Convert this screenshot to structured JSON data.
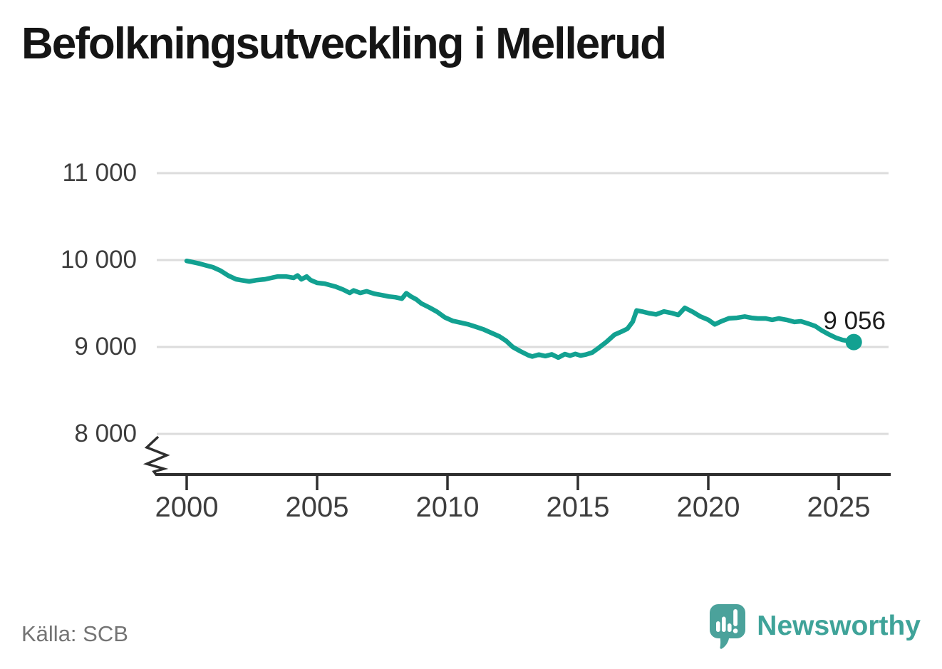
{
  "title": "Befolkningsutveckling i Mellerud",
  "source": "Källa: SCB",
  "branding": {
    "wordmark": "Newsworthy"
  },
  "colors": {
    "accent": "#12a191",
    "grid": "#dcdcdc",
    "axis": "#2f2f2f",
    "tick_text": "#3d3d3d",
    "title_text": "#151515",
    "source_text": "#747474",
    "logo_teal": "#4ba29b",
    "wordmark_teal": "#3fa399"
  },
  "chart_data": {
    "type": "line",
    "title": "Befolkningsutveckling i Mellerud",
    "legend": "none",
    "grid": "horizontal",
    "y_axis_break": true,
    "x_range": [
      1998.8,
      2027.0
    ],
    "y_range_shown": [
      8000,
      11000
    ],
    "y_ticks": [
      {
        "value": 11000,
        "label": "11 000"
      },
      {
        "value": 10000,
        "label": "10 000"
      },
      {
        "value": 9000,
        "label": "9 000"
      },
      {
        "value": 8000,
        "label": "8 000"
      }
    ],
    "x_ticks": [
      {
        "value": 2000,
        "label": "2000"
      },
      {
        "value": 2005,
        "label": "2005"
      },
      {
        "value": 2010,
        "label": "2010"
      },
      {
        "value": 2015,
        "label": "2015"
      },
      {
        "value": 2020,
        "label": "2020"
      },
      {
        "value": 2025,
        "label": "2025"
      }
    ],
    "end_point": {
      "x": 2025.58,
      "value": 9056,
      "label": "9 056"
    },
    "points": [
      [
        2000.0,
        9990
      ],
      [
        2000.25,
        9975
      ],
      [
        2000.5,
        9958
      ],
      [
        2000.75,
        9938
      ],
      [
        2001.0,
        9918
      ],
      [
        2001.3,
        9877
      ],
      [
        2001.6,
        9820
      ],
      [
        2001.9,
        9779
      ],
      [
        2002.1,
        9768
      ],
      [
        2002.4,
        9754
      ],
      [
        2002.7,
        9770
      ],
      [
        2003.0,
        9779
      ],
      [
        2003.25,
        9795
      ],
      [
        2003.5,
        9811
      ],
      [
        2003.8,
        9811
      ],
      [
        2004.1,
        9795
      ],
      [
        2004.25,
        9822
      ],
      [
        2004.4,
        9779
      ],
      [
        2004.6,
        9811
      ],
      [
        2004.75,
        9770
      ],
      [
        2005.0,
        9738
      ],
      [
        2005.3,
        9728
      ],
      [
        2005.7,
        9695
      ],
      [
        2006.0,
        9660
      ],
      [
        2006.25,
        9622
      ],
      [
        2006.4,
        9650
      ],
      [
        2006.65,
        9622
      ],
      [
        2006.9,
        9640
      ],
      [
        2007.2,
        9612
      ],
      [
        2007.5,
        9596
      ],
      [
        2007.75,
        9580
      ],
      [
        2008.0,
        9572
      ],
      [
        2008.25,
        9556
      ],
      [
        2008.42,
        9618
      ],
      [
        2008.6,
        9580
      ],
      [
        2008.8,
        9548
      ],
      [
        2009.0,
        9500
      ],
      [
        2009.3,
        9455
      ],
      [
        2009.6,
        9405
      ],
      [
        2009.9,
        9340
      ],
      [
        2010.2,
        9300
      ],
      [
        2010.5,
        9280
      ],
      [
        2010.8,
        9260
      ],
      [
        2011.1,
        9230
      ],
      [
        2011.4,
        9200
      ],
      [
        2011.7,
        9160
      ],
      [
        2012.0,
        9120
      ],
      [
        2012.25,
        9070
      ],
      [
        2012.5,
        9000
      ],
      [
        2012.8,
        8950
      ],
      [
        2013.1,
        8905
      ],
      [
        2013.25,
        8890
      ],
      [
        2013.5,
        8912
      ],
      [
        2013.75,
        8895
      ],
      [
        2014.0,
        8915
      ],
      [
        2014.25,
        8878
      ],
      [
        2014.5,
        8918
      ],
      [
        2014.7,
        8900
      ],
      [
        2014.9,
        8920
      ],
      [
        2015.1,
        8902
      ],
      [
        2015.3,
        8912
      ],
      [
        2015.55,
        8935
      ],
      [
        2015.8,
        8990
      ],
      [
        2016.1,
        9060
      ],
      [
        2016.4,
        9140
      ],
      [
        2016.7,
        9180
      ],
      [
        2016.9,
        9210
      ],
      [
        2017.1,
        9290
      ],
      [
        2017.25,
        9420
      ],
      [
        2017.5,
        9405
      ],
      [
        2017.7,
        9390
      ],
      [
        2018.0,
        9375
      ],
      [
        2018.3,
        9408
      ],
      [
        2018.6,
        9390
      ],
      [
        2018.85,
        9368
      ],
      [
        2019.1,
        9450
      ],
      [
        2019.4,
        9405
      ],
      [
        2019.7,
        9350
      ],
      [
        2020.0,
        9312
      ],
      [
        2020.25,
        9260
      ],
      [
        2020.5,
        9295
      ],
      [
        2020.8,
        9330
      ],
      [
        2021.1,
        9335
      ],
      [
        2021.4,
        9350
      ],
      [
        2021.65,
        9335
      ],
      [
        2021.9,
        9328
      ],
      [
        2022.2,
        9328
      ],
      [
        2022.45,
        9312
      ],
      [
        2022.7,
        9328
      ],
      [
        2023.0,
        9312
      ],
      [
        2023.3,
        9288
      ],
      [
        2023.55,
        9295
      ],
      [
        2023.8,
        9272
      ],
      [
        2024.1,
        9240
      ],
      [
        2024.35,
        9190
      ],
      [
        2024.6,
        9148
      ],
      [
        2024.9,
        9105
      ],
      [
        2025.15,
        9080
      ],
      [
        2025.4,
        9068
      ],
      [
        2025.58,
        9056
      ]
    ]
  }
}
